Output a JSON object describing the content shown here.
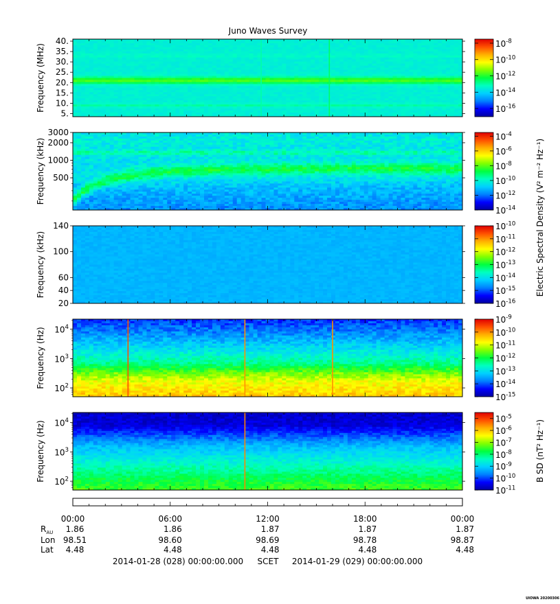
{
  "title": "Juno Waves Survey",
  "footer_credit": "UIOWA 20200306",
  "colormap": [
    "#0000a0",
    "#0000ff",
    "#0080ff",
    "#00d0ff",
    "#00ffc0",
    "#00ff40",
    "#80ff00",
    "#ffff00",
    "#ffb000",
    "#ff5000",
    "#e00000"
  ],
  "colorbar_labels": {
    "electric": "Electric Spectral Density (V² m⁻² Hz⁻¹)",
    "magnetic": "B SD (nT² Hz⁻¹)"
  },
  "chart_data": [
    {
      "type": "heatmap",
      "title": "Juno Waves Survey",
      "ylabel": "Frequency (MHz)",
      "yscale": "linear",
      "ylim": [
        3.5,
        41
      ],
      "yticks": [
        5,
        10,
        15,
        20,
        25,
        30,
        35,
        40
      ],
      "ytick_labels": [
        "5.",
        "10.",
        "15.",
        "20.",
        "25.",
        "30.",
        "35.",
        "40."
      ],
      "base_level": -13.5,
      "noise": 0.15,
      "bands": [
        {
          "value": 21,
          "width": 1.6,
          "level": -11.7
        },
        {
          "value": 9,
          "width": 0.8,
          "level": -13.0
        },
        {
          "value": 33,
          "width": 0.6,
          "level": -13.2
        }
      ],
      "spikes": [
        {
          "time": 15.8,
          "level": -12.5
        },
        {
          "time": 11.6,
          "level": -13.0
        }
      ],
      "colorbar": {
        "range": [
          -17,
          -7.5
        ],
        "ticks": [
          -8,
          -10,
          -12,
          -14,
          -16
        ],
        "labels": [
          "10-8",
          "10-10",
          "10-12",
          "10-14",
          "10-16"
        ],
        "quantity": "electric"
      }
    },
    {
      "type": "heatmap",
      "ylabel": "Frequency (kHz)",
      "yscale": "log",
      "ylim": [
        140,
        3000
      ],
      "yticks": [
        3000,
        2000,
        1000,
        500
      ],
      "ytick_labels": [
        "3000",
        "2000",
        "1000",
        "500"
      ],
      "base_level": -10.5,
      "noise": 0.5,
      "low_level": -11.7,
      "bands": [
        {
          "value": 2200,
          "width": 0.1,
          "level": -10.2
        },
        {
          "value": 1350,
          "width": 0.05,
          "level": -9.6
        }
      ],
      "drift_band": {
        "start_value": 200,
        "end_value": 720,
        "tau_hours": 3.2,
        "width": 0.1,
        "level": -8.8
      },
      "colorbar": {
        "range": [
          -14,
          -3.5
        ],
        "ticks": [
          -4,
          -6,
          -8,
          -10,
          -12,
          -14
        ],
        "labels": [
          "10-4",
          "10-6",
          "10-8",
          "10-10",
          "10-12",
          "10-14"
        ],
        "quantity": "electric"
      }
    },
    {
      "type": "heatmap",
      "ylabel": "Frequency (kHz)",
      "yscale": "linear",
      "ylim": [
        20,
        140
      ],
      "yticks": [
        140,
        100,
        60,
        40,
        20
      ],
      "ytick_labels": [
        "140",
        "100",
        "60",
        "40",
        "20"
      ],
      "base_level": -14.4,
      "noise": 0.08,
      "bands": [],
      "colorbar": {
        "range": [
          -16,
          -10
        ],
        "ticks": [
          -10,
          -11,
          -12,
          -13,
          -14,
          -15,
          -16
        ],
        "labels": [
          "10-10",
          "10-11",
          "10-12",
          "10-13",
          "10-14",
          "10-15",
          "10-16"
        ],
        "quantity": "electric"
      }
    },
    {
      "type": "heatmap",
      "ylabel": "Frequency (Hz)",
      "yscale": "log",
      "ylim": [
        50,
        22000
      ],
      "yticks": [
        100,
        1000,
        10000
      ],
      "ytick_labels": [
        "10^2",
        "10^3",
        "10^4"
      ],
      "gradient": [
        [
          50,
          -10.4
        ],
        [
          150,
          -10.8
        ],
        [
          300,
          -11.4
        ],
        [
          700,
          -12.4
        ],
        [
          2000,
          -13.0
        ],
        [
          6000,
          -13.6
        ],
        [
          22000,
          -14.2
        ]
      ],
      "noise": 0.3,
      "spikes": [
        {
          "time": 3.4,
          "level": -9.6
        },
        {
          "time": 10.6,
          "level": -10.0
        },
        {
          "time": 16.0,
          "level": -10.0
        }
      ],
      "colorbar": {
        "range": [
          -15,
          -9
        ],
        "ticks": [
          -9,
          -10,
          -11,
          -12,
          -13,
          -14,
          -15
        ],
        "labels": [
          "10-9",
          "10-10",
          "10-11",
          "10-12",
          "10-13",
          "10-14",
          "10-15"
        ],
        "quantity": "electric"
      }
    },
    {
      "type": "heatmap",
      "ylabel": "Frequency (Hz)",
      "yscale": "log",
      "ylim": [
        50,
        22000
      ],
      "yticks": [
        100,
        1000,
        10000
      ],
      "ytick_labels": [
        "10^2",
        "10^3",
        "10^4"
      ],
      "gradient": [
        [
          50,
          -7.4
        ],
        [
          120,
          -7.8
        ],
        [
          400,
          -8.5
        ],
        [
          1500,
          -9.2
        ],
        [
          4000,
          -10.0
        ],
        [
          8000,
          -10.6
        ],
        [
          22000,
          -10.7
        ]
      ],
      "noise": 0.25,
      "spikes": [
        {
          "time": 10.6,
          "level": -5.5
        }
      ],
      "colorbar": {
        "range": [
          -11,
          -4.5
        ],
        "ticks": [
          -5,
          -6,
          -7,
          -8,
          -9,
          -10,
          -11
        ],
        "labels": [
          "10-5",
          "10-6",
          "10-7",
          "10-8",
          "10-9",
          "10-10",
          "10-11"
        ],
        "quantity": "magnetic"
      }
    }
  ],
  "time_axis": {
    "range_hours": [
      0,
      24
    ],
    "major_ticks": [
      0,
      6,
      12,
      18,
      24
    ],
    "labels": [
      "00:00",
      "06:00",
      "12:00",
      "18:00",
      "00:00"
    ]
  },
  "ephemeris": {
    "rows": [
      {
        "name": "R",
        "sub": "AU",
        "values": [
          "1.86",
          "1.86",
          "1.87",
          "1.87",
          "1.87"
        ]
      },
      {
        "name": "Lon",
        "sub": "",
        "values": [
          "98.51",
          "98.60",
          "98.69",
          "98.78",
          "98.87"
        ]
      },
      {
        "name": "Lat",
        "sub": "",
        "values": [
          "4.48",
          "4.48",
          "4.48",
          "4.48",
          "4.48"
        ]
      }
    ]
  },
  "time_range": {
    "start": "2014-01-28 (028) 00:00:00.000",
    "label": "SCET",
    "end": "2014-01-29 (029) 00:00:00.000"
  }
}
